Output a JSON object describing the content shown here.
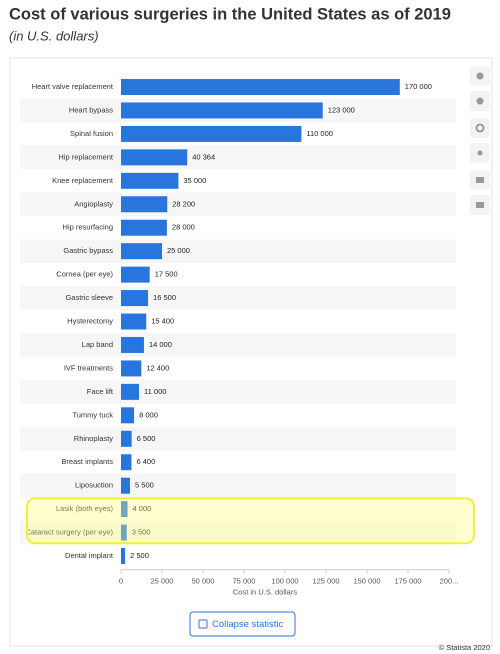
{
  "chart_data": {
    "type": "bar",
    "orientation": "horizontal",
    "title": "Cost of various surgeries in the United States as of 2019",
    "subtitle": "(in U.S. dollars)",
    "x_label": "Cost in U.S. dollars",
    "categories": [
      "Heart valve replacement",
      "Heart bypass",
      "Spinal fusion",
      "Hip replacement",
      "Knee replacement",
      "Angioplasty",
      "Hip resurfacing",
      "Gastric bypass",
      "Cornea (per eye)",
      "Gastric sleeve",
      "Hysterectomy",
      "Lap band",
      "IVF treatments",
      "Face lift",
      "Tummy tuck",
      "Rhinoplasty",
      "Breast implants",
      "Liposuction",
      "Lasik (both eyes)",
      "Cataract surgery (per eye)",
      "Dental implant"
    ],
    "values": [
      170000,
      123000,
      110000,
      40364,
      35000,
      28200,
      28000,
      25000,
      17500,
      16500,
      15400,
      14000,
      12400,
      11000,
      8000,
      6500,
      6400,
      5500,
      4000,
      3500,
      2500
    ],
    "value_labels": [
      "170 000",
      "123 000",
      "110 000",
      "40 364",
      "35 000",
      "28 200",
      "28 000",
      "25 000",
      "17 500",
      "16 500",
      "15 400",
      "14 000",
      "12 400",
      "11 000",
      "8 000",
      "6 500",
      "6 400",
      "5 500",
      "4 000",
      "3 500",
      "2 500"
    ],
    "color": "#2876dd",
    "xlim": [
      0,
      200000
    ],
    "xticks": [
      0,
      {
        "value": 25000,
        "label": "25 000"
      },
      {
        "value": 50000,
        "label": "50 000"
      },
      {
        "value": 75000,
        "label": "75 000"
      },
      {
        "value": 100000,
        "label": "100 000"
      },
      {
        "value": 125000,
        "label": "125 000"
      },
      {
        "value": 150000,
        "label": "150 000"
      },
      {
        "value": 175000,
        "label": "175 000"
      },
      {
        "value": 200000,
        "label": "200..."
      }
    ]
  },
  "ui": {
    "button": "Collapse statistic",
    "credit": "© Statista 2020"
  }
}
